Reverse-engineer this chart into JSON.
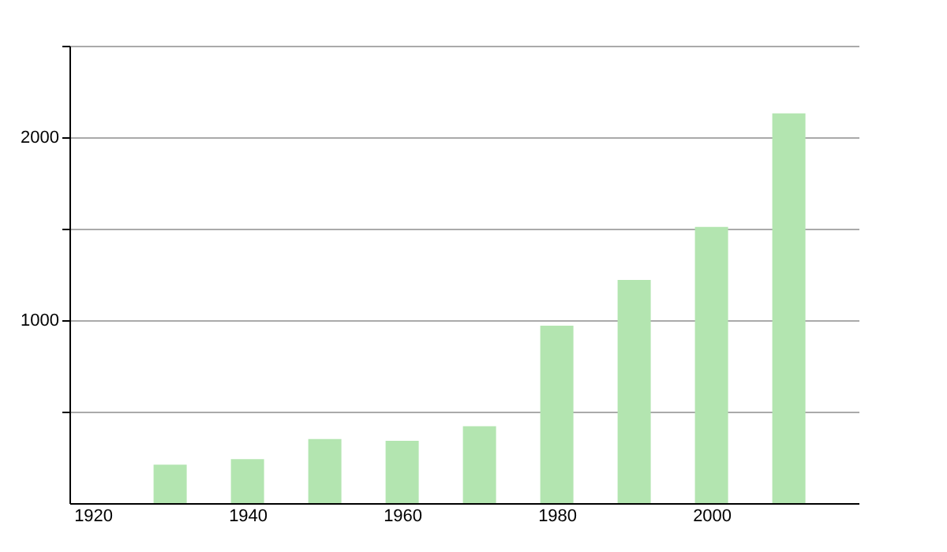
{
  "chart_data": {
    "type": "bar",
    "x": [
      1930,
      1940,
      1950,
      1960,
      1970,
      1980,
      1990,
      2000,
      2010
    ],
    "values": [
      210,
      240,
      350,
      340,
      420,
      970,
      1220,
      1510,
      2130
    ],
    "color": "#b3e5b0",
    "xlim": [
      1918,
      2018
    ],
    "xticks": [
      1920,
      1940,
      1960,
      1980,
      2000
    ],
    "ylim": [
      0,
      2500
    ],
    "yticks": [
      {
        "value": 500,
        "label": null
      },
      1000,
      {
        "value": 1500,
        "label": null
      },
      2000,
      {
        "value": 2500,
        "label": null
      }
    ],
    "grid": "y"
  }
}
